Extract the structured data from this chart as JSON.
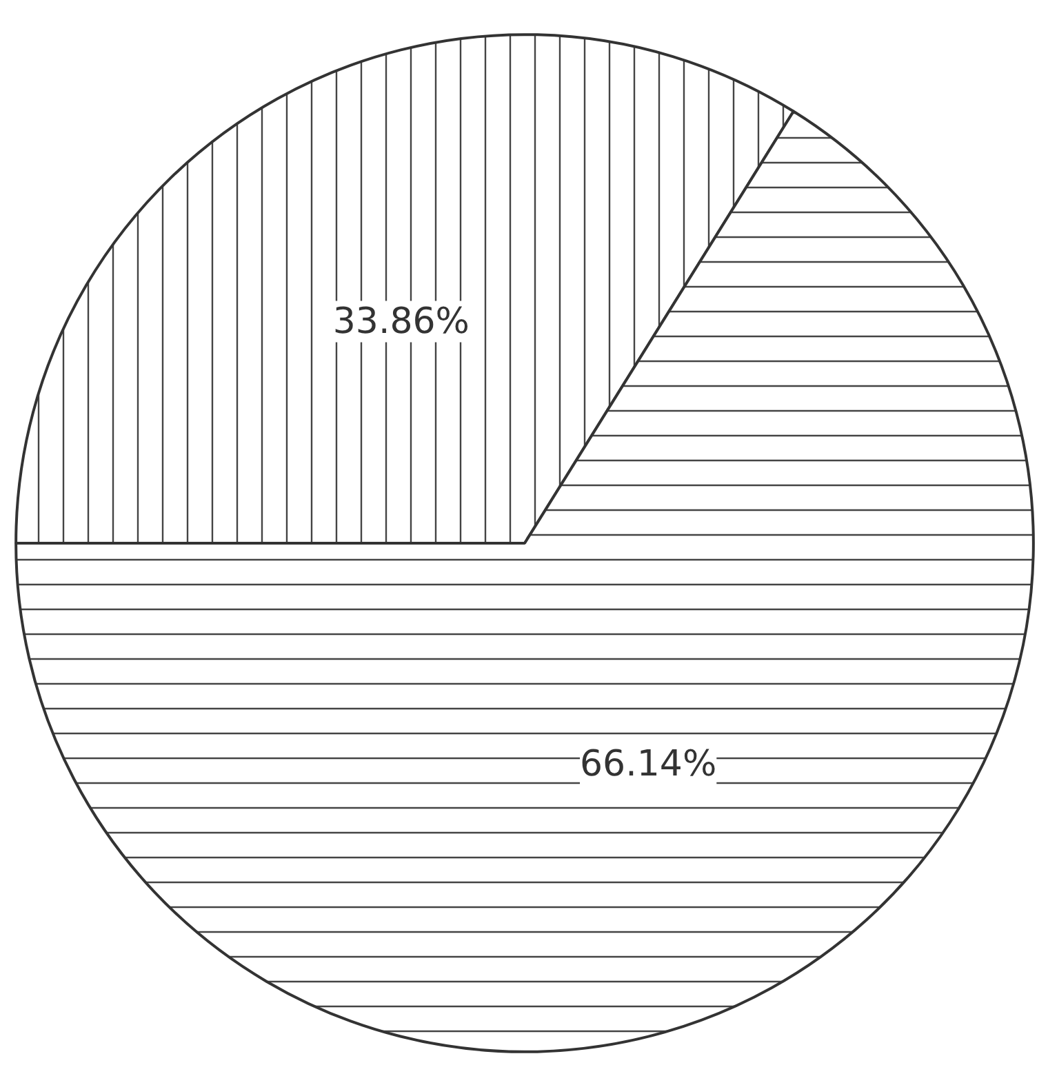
{
  "chart_data": {
    "type": "pie",
    "categories": [
      null,
      null
    ],
    "values": [
      33.86,
      66.14
    ],
    "colors": [
      "#ffffff",
      "#ffffff"
    ],
    "value_labels": [
      "33.86%",
      "66.14%"
    ]
  }
}
